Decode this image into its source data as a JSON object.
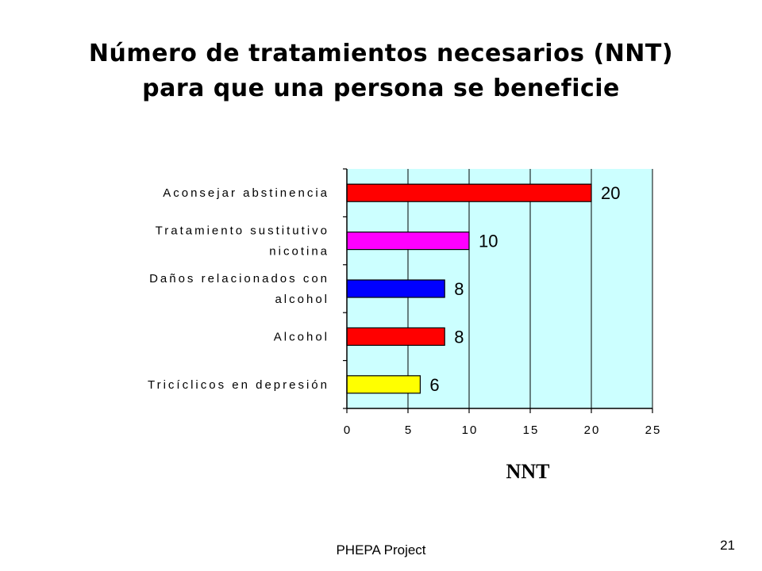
{
  "slide": {
    "title_line1": "Número de tratamientos necesarios (NNT)",
    "title_line2": "para que una persona se beneficie",
    "footer": "PHEPA Project",
    "page_number": "21"
  },
  "chart_data": {
    "type": "bar",
    "orientation": "horizontal",
    "title": "",
    "xlabel": "NNT",
    "ylabel": "",
    "xlim": [
      0,
      25
    ],
    "xticks": [
      0,
      5,
      10,
      15,
      20,
      25
    ],
    "grid": "vertical",
    "legend": "none",
    "plot_background": "#ccffff",
    "categories": [
      {
        "lines": [
          "Aconsejar abstinencia"
        ]
      },
      {
        "lines": [
          "Tratamiento sustitutivo",
          "nicotina"
        ]
      },
      {
        "lines": [
          "Daños relacionados con",
          "alcohol"
        ]
      },
      {
        "lines": [
          "Alcohol"
        ]
      },
      {
        "lines": [
          "Tricíclicos en depresión"
        ]
      }
    ],
    "values": [
      20,
      10,
      8,
      8,
      6
    ],
    "data_labels": [
      "20",
      "10",
      "8",
      "8",
      "6"
    ],
    "colors": [
      "#ff0000",
      "#ff00ff",
      "#0000ff",
      "#ff0000",
      "#ffff00"
    ]
  }
}
